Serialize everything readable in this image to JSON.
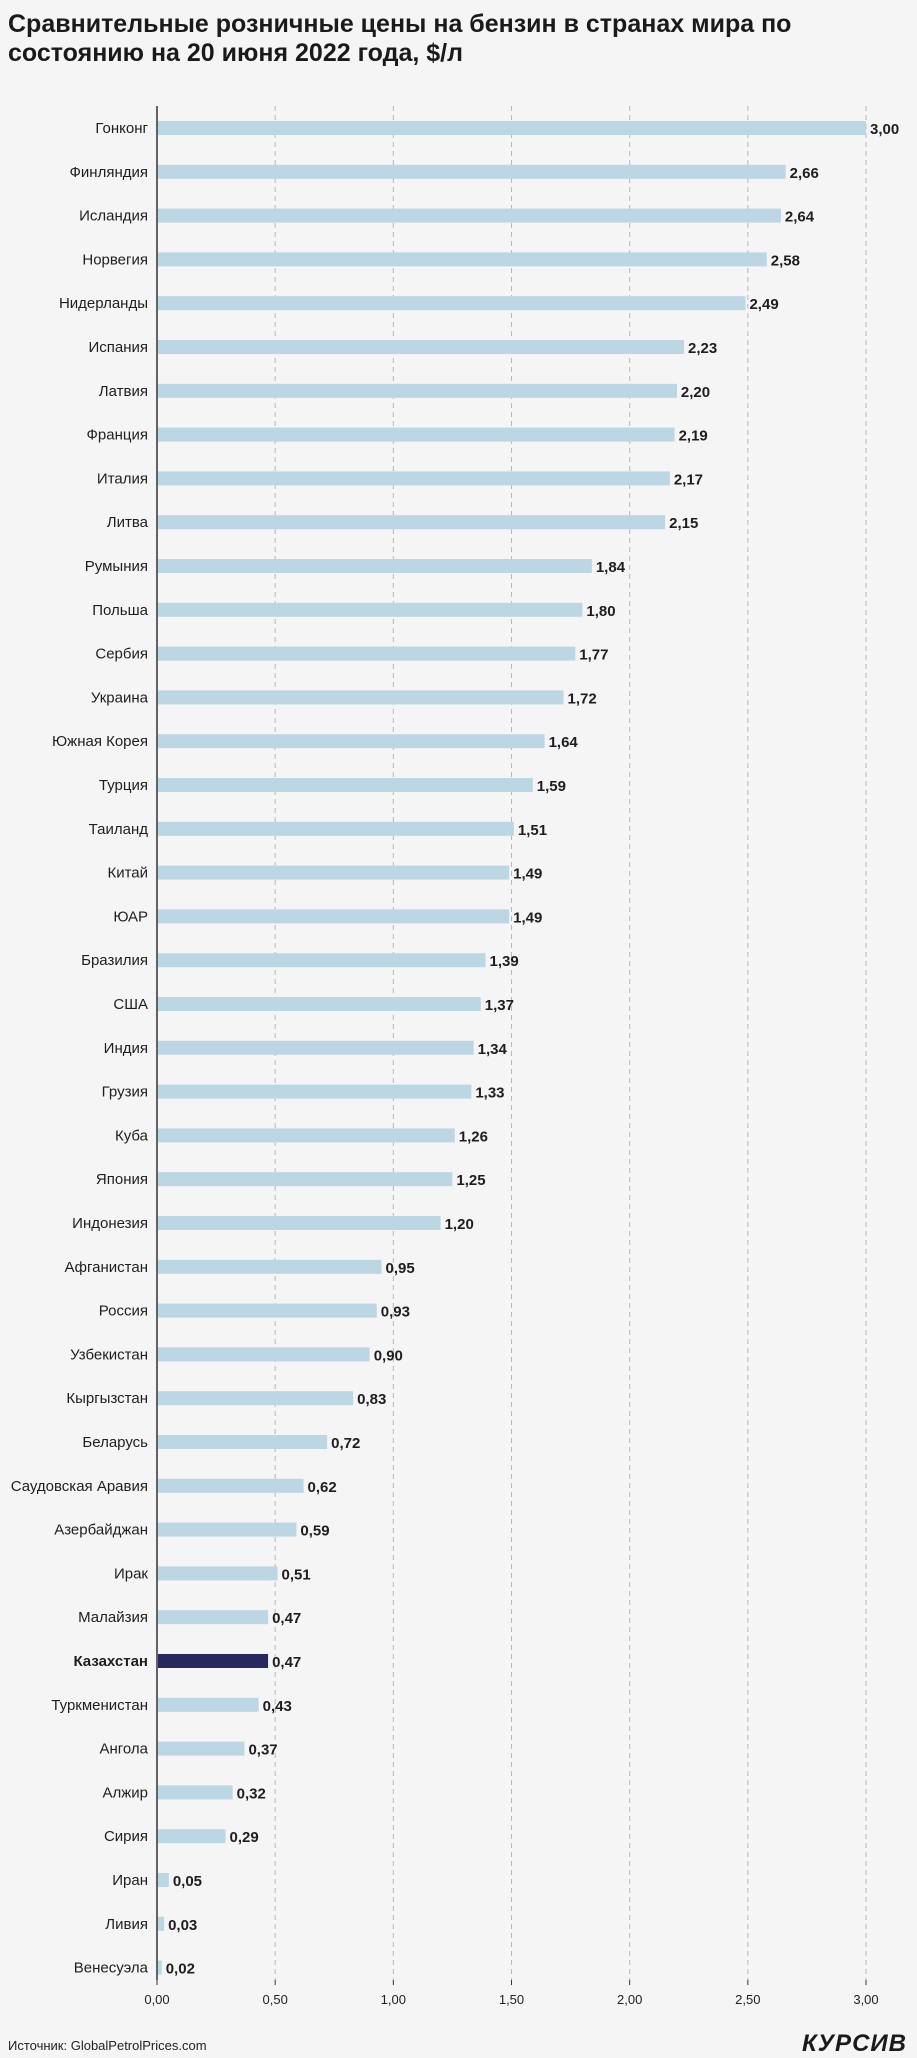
{
  "title": "Сравнительные розничные цены на бензин в странах мира по состоянию на 20 июня 2022 года, $/л",
  "source": "Источник: GlobalPetrolPrices.com",
  "logo": "КУРСИВ",
  "colors": {
    "bar": "#bdd6e4",
    "highlight": "#27285f",
    "grid": "#b8b8b8",
    "axis": "#333333"
  },
  "chart_data": {
    "type": "bar",
    "orientation": "horizontal",
    "highlight": "Казахстан",
    "xlim": [
      0,
      3.0
    ],
    "x_ticks": [
      "0,00",
      "0,50",
      "1,00",
      "1,50",
      "2,00",
      "2,50",
      "3,00"
    ],
    "grid": "vertical dashed",
    "categories": [
      "Гонконг",
      "Финляндия",
      "Исландия",
      "Норвегия",
      "Нидерланды",
      "Испания",
      "Латвия",
      "Франция",
      "Италия",
      "Литва",
      "Румыния",
      "Польша",
      "Сербия",
      "Украина",
      "Южная Корея",
      "Турция",
      "Таиланд",
      "Китай",
      "ЮАР",
      "Бразилия",
      "США",
      "Индия",
      "Грузия",
      "Куба",
      "Япония",
      "Индонезия",
      "Афганистан",
      "Россия",
      "Узбекистан",
      "Кыргызстан",
      "Беларусь",
      "Саудовская Аравия",
      "Азербайджан",
      "Ирак",
      "Малайзия",
      "Казахстан",
      "Туркменистан",
      "Ангола",
      "Алжир",
      "Сирия",
      "Иран",
      "Ливия",
      "Венесуэла"
    ],
    "values": [
      3.0,
      2.66,
      2.64,
      2.58,
      2.49,
      2.23,
      2.2,
      2.19,
      2.17,
      2.15,
      1.84,
      1.8,
      1.77,
      1.72,
      1.64,
      1.59,
      1.51,
      1.49,
      1.49,
      1.39,
      1.37,
      1.34,
      1.33,
      1.26,
      1.25,
      1.2,
      0.95,
      0.93,
      0.9,
      0.83,
      0.72,
      0.62,
      0.59,
      0.51,
      0.47,
      0.47,
      0.43,
      0.37,
      0.32,
      0.29,
      0.05,
      0.03,
      0.02
    ],
    "value_labels": [
      "3,00",
      "2,66",
      "2,64",
      "2,58",
      "2,49",
      "2,23",
      "2,20",
      "2,19",
      "2,17",
      "2,15",
      "1,84",
      "1,80",
      "1,77",
      "1,72",
      "1,64",
      "1,59",
      "1,51",
      "1,49",
      "1,49",
      "1,39",
      "1,37",
      "1,34",
      "1,33",
      "1,26",
      "1,25",
      "1,20",
      "0,95",
      "0,93",
      "0,90",
      "0,83",
      "0,72",
      "0,62",
      "0,59",
      "0,51",
      "0,47",
      "0,47",
      "0,43",
      "0,37",
      "0,32",
      "0,29",
      "0,05",
      "0,03",
      "0,02"
    ]
  }
}
